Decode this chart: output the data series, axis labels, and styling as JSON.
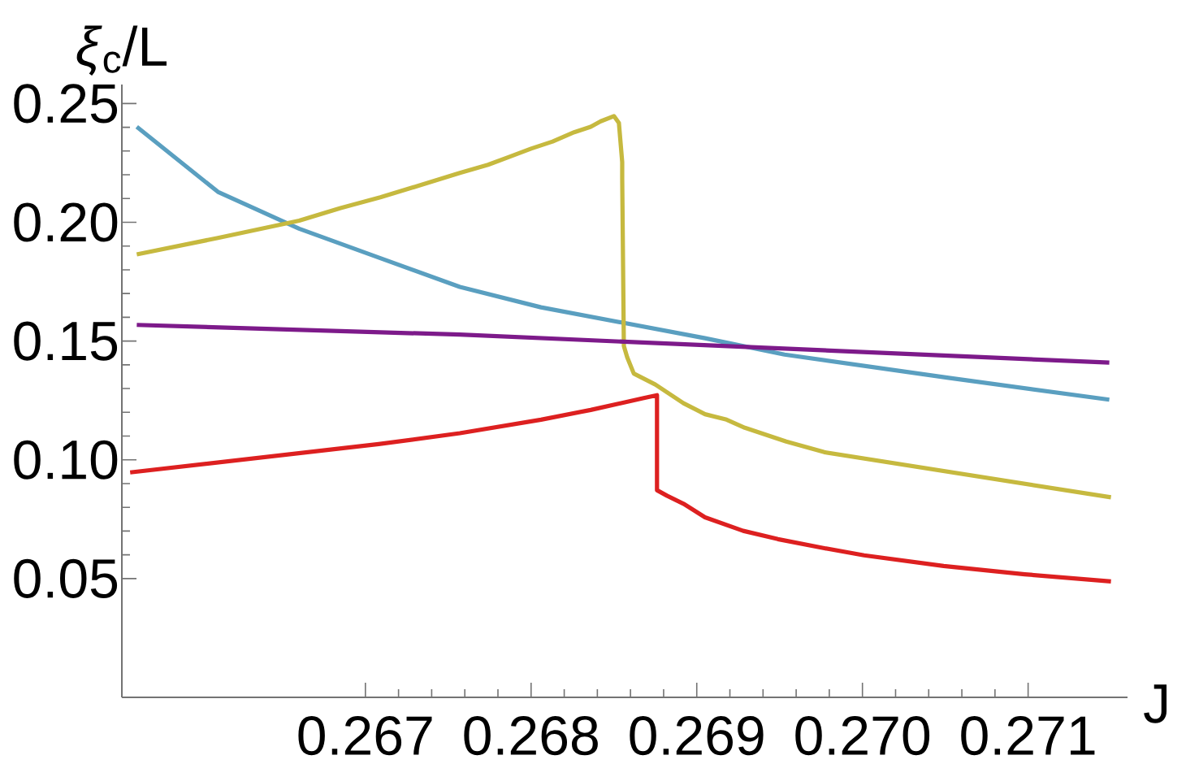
{
  "chart_data": {
    "type": "line",
    "xlabel": "J",
    "ylabel": "*ξ*$_{c}$/L",
    "xlim": [
      0.26553,
      0.2716
    ],
    "ylim": [
      0,
      0.258
    ],
    "xticks": [
      0.267,
      0.268,
      0.269,
      {
        "value": 0.27,
        "label": "0.270"
      },
      0.271
    ],
    "yticks": [
      {
        "value": 0.05,
        "label": "0.05"
      },
      {
        "value": 0.1,
        "label": "0.10"
      },
      {
        "value": 0.15,
        "label": "0.15"
      },
      {
        "value": 0.2,
        "label": "0.20"
      },
      {
        "value": 0.25,
        "label": "0.25"
      }
    ],
    "grid": false,
    "marker": "none",
    "line_style": "solid",
    "series": [
      {
        "color": "#5a9fc0",
        "x": [
          0.26562,
          0.26611,
          0.2666,
          0.26709,
          0.26757,
          0.26806,
          0.26905,
          0.26953,
          0.27052,
          0.27149
        ],
        "values": [
          0.2402,
          0.2128,
          0.1973,
          0.1849,
          0.1728,
          0.1642,
          0.1512,
          0.1443,
          0.1345,
          0.1253
        ]
      },
      {
        "color": "#c6b93f",
        "x": [
          0.26562,
          0.26611,
          0.2666,
          0.26685,
          0.26709,
          0.26734,
          0.26757,
          0.26774,
          0.26787,
          0.268,
          0.26813,
          0.26826,
          0.26836,
          0.26842,
          0.2685,
          0.26853,
          0.26855,
          0.26855,
          0.26856,
          0.26858,
          0.26862,
          0.26875,
          0.26892,
          0.26905,
          0.26918,
          0.26929,
          0.26954,
          0.26977,
          0.2715
        ],
        "values": [
          0.1865,
          0.1934,
          0.2007,
          0.206,
          0.2105,
          0.2158,
          0.2208,
          0.2242,
          0.2276,
          0.231,
          0.234,
          0.2379,
          0.2402,
          0.2425,
          0.2447,
          0.2418,
          0.2253,
          0.2185,
          0.1479,
          0.1432,
          0.1363,
          0.1317,
          0.1238,
          0.1192,
          0.1169,
          0.1135,
          0.1077,
          0.1032,
          0.0842
        ]
      },
      {
        "color": "#7d1a8a",
        "x": [
          0.26562,
          0.26757,
          0.27149
        ],
        "values": [
          0.1568,
          0.1527,
          0.1409
        ]
      },
      {
        "color": "#dd2020",
        "x": [
          0.26558,
          0.26708,
          0.26757,
          0.26806,
          0.26836,
          0.26868,
          0.26876,
          0.26876,
          0.26882,
          0.26892,
          0.26905,
          0.26928,
          0.26949,
          0.26977,
          0.27001,
          0.27049,
          0.27098,
          0.2715
        ],
        "values": [
          0.0947,
          0.1066,
          0.1112,
          0.1169,
          0.121,
          0.126,
          0.1272,
          0.0872,
          0.0849,
          0.0815,
          0.0758,
          0.0701,
          0.0666,
          0.0628,
          0.0598,
          0.0553,
          0.0518,
          0.0488
        ]
      }
    ]
  }
}
